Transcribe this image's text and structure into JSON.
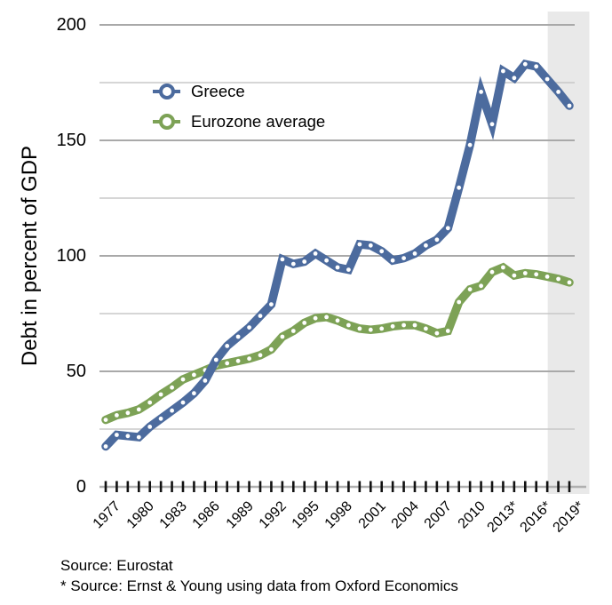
{
  "chart_data": {
    "type": "line",
    "title": "",
    "xlabel": "",
    "ylabel": "Debt in percent of GDP",
    "ylim": [
      0,
      200
    ],
    "yticks": [
      0,
      50,
      100,
      150,
      200
    ],
    "minor_gridlines": [
      25,
      75,
      125,
      175
    ],
    "grid": "on",
    "legend_position": "upper-left-inside",
    "x": [
      1977,
      1978,
      1979,
      1980,
      1981,
      1982,
      1983,
      1984,
      1985,
      1986,
      1987,
      1988,
      1989,
      1990,
      1991,
      1992,
      1993,
      1994,
      1995,
      1996,
      1997,
      1998,
      1999,
      2000,
      2001,
      2002,
      2003,
      2004,
      2005,
      2006,
      2007,
      2008,
      2009,
      2010,
      2011,
      2012,
      2013,
      2014,
      2015,
      2016,
      2017,
      2018,
      2019
    ],
    "xtick_labels": [
      "1977",
      "1980",
      "1983",
      "1986",
      "1989",
      "1992",
      "1995",
      "1998",
      "2001",
      "2004",
      "2007",
      "2010",
      "2013*",
      "2016*",
      "2019*"
    ],
    "xtick_years": [
      1977,
      1980,
      1983,
      1986,
      1989,
      1992,
      1995,
      1998,
      2001,
      2004,
      2007,
      2010,
      2013,
      2016,
      2019
    ],
    "series": [
      {
        "name": "Eurozone average",
        "color": "#7da256",
        "values": [
          29,
          31,
          32,
          33.5,
          36.5,
          40,
          43,
          46.5,
          48.5,
          50.5,
          52.5,
          53.5,
          54.5,
          55.5,
          57,
          59.5,
          65,
          67.5,
          71,
          73,
          73.5,
          72,
          70,
          68.5,
          68,
          68.5,
          69.5,
          70,
          70,
          68.5,
          66.5,
          67.5,
          80,
          85.5,
          87,
          93,
          95,
          91.5,
          92.5,
          92,
          91,
          90,
          88.5
        ]
      },
      {
        "name": "Greece",
        "color": "#4c6b9e",
        "values": [
          17.5,
          22.5,
          22,
          21.5,
          26,
          29.5,
          33,
          36.5,
          40.5,
          46,
          55,
          61,
          65,
          69,
          74,
          79,
          98.5,
          96.5,
          97.5,
          101,
          98,
          95,
          94,
          105,
          104.5,
          102,
          98,
          99,
          101,
          104.5,
          107,
          112,
          129.5,
          148,
          171,
          157,
          180,
          177,
          183,
          182,
          176.5,
          171,
          165
        ]
      }
    ],
    "forecast_band": {
      "start_year": 2017,
      "end_year": 2019,
      "note": "shaded forecast region"
    }
  },
  "legend": {
    "items": [
      {
        "label": "Greece",
        "series": "Greece"
      },
      {
        "label": "Eurozone average",
        "series": "Eurozone average"
      }
    ]
  },
  "footnotes": {
    "line1": "Source: Eurostat",
    "line2": "* Source: Ernst & Young using data from Oxford Economics"
  },
  "colors": {
    "greece_line": "#4c6b9e",
    "eurozone_line": "#7da256",
    "gridline_major": "#a9a9a9",
    "gridline_minor": "#c8c8c8",
    "axis_line": "#b0b0b0",
    "tick": "#111111",
    "forecast_band": "#e9e9e9",
    "marker_dot": "#ffffff",
    "background": "#ffffff"
  }
}
